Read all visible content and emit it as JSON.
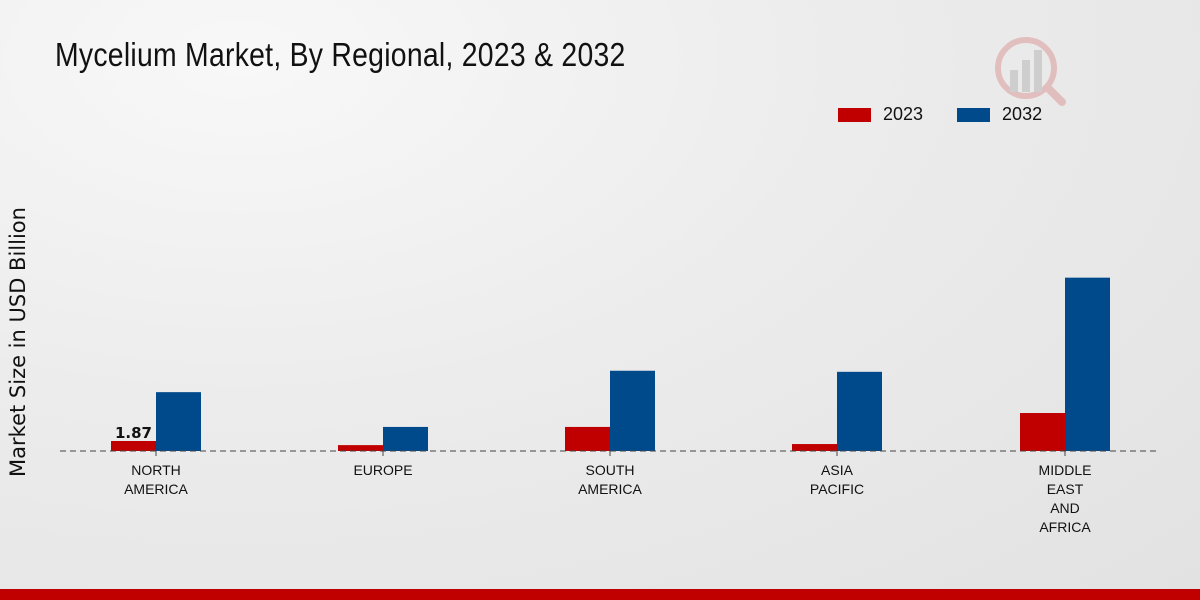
{
  "title": "Mycelium Market, By Regional, 2023 & 2032",
  "colors": {
    "s2023": "#c00000",
    "s2032": "#004a8c"
  },
  "chart_data": {
    "type": "bar",
    "title": "Mycelium Market, By Regional, 2023 & 2032",
    "xlabel": "",
    "ylabel": "Market Size in USD Billion",
    "categories": [
      [
        "NORTH",
        "AMERICA"
      ],
      [
        "EUROPE"
      ],
      [
        "SOUTH",
        "AMERICA"
      ],
      [
        "ASIA",
        "PACIFIC"
      ],
      [
        "MIDDLE",
        "EAST",
        "AND",
        "AFRICA"
      ]
    ],
    "series": [
      {
        "name": "2023",
        "values": [
          1.87,
          1.1,
          4.5,
          1.3,
          7.1
        ]
      },
      {
        "name": "2032",
        "values": [
          11.0,
          4.5,
          15.0,
          14.8,
          32.4
        ]
      }
    ],
    "data_labels": [
      {
        "series": "2023",
        "index": 0,
        "text": "1.87"
      }
    ],
    "ylim": [
      0,
      40
    ],
    "grid": false,
    "legend": "top-right"
  }
}
